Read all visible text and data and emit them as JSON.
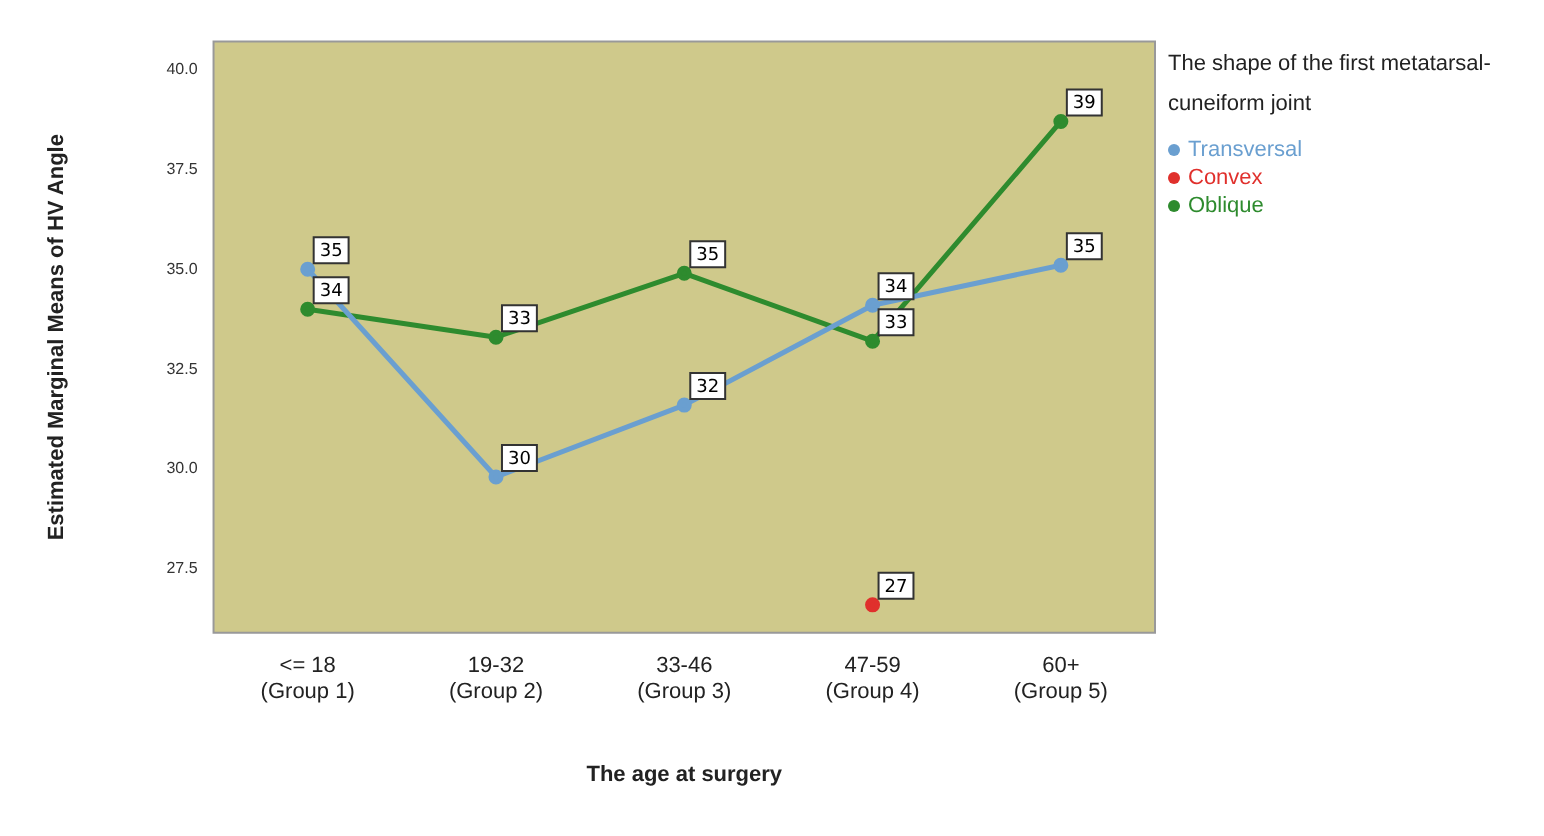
{
  "chart_data": {
    "type": "line",
    "xlabel": "The age at surgery",
    "ylabel": "Estimated Marginal Means of HV Angle",
    "legend_title": "The shape of the first metatarsal-cuneiform joint",
    "legend": "top right",
    "marker": "circle",
    "grid": false,
    "categories": [
      "<= 18\n(Group 1)",
      "19-32\n(Group 2)",
      "33-46\n(Group 3)",
      "47-59\n(Group 4)",
      "60+\n(Group 5)"
    ],
    "ylim": [
      25.9,
      40.7
    ],
    "yticks": [
      {
        "value": 27.5,
        "label": "27.5"
      },
      {
        "value": 30,
        "label": "30.0"
      },
      {
        "value": 32.5,
        "label": "32.5"
      },
      {
        "value": 35,
        "label": "35.0"
      },
      {
        "value": 37.5,
        "label": "37.5"
      },
      {
        "value": 40,
        "label": "40.0"
      }
    ],
    "series": [
      {
        "name": "Transversal",
        "color": "#6a9fd0",
        "values": [
          35.0,
          29.8,
          31.6,
          34.1,
          35.1
        ],
        "value_labels": [
          "35",
          "30",
          "32",
          "34",
          "35"
        ]
      },
      {
        "name": "Convex",
        "color": "#e0302c",
        "values": [
          null,
          null,
          null,
          26.6,
          null
        ],
        "value_labels": [
          null,
          null,
          null,
          "27",
          null
        ]
      },
      {
        "name": "Oblique",
        "color": "#2e8b2e",
        "values": [
          34.0,
          33.3,
          34.9,
          33.2,
          38.7
        ],
        "value_labels": [
          "34",
          "33",
          "35",
          "33",
          "39"
        ]
      }
    ]
  }
}
